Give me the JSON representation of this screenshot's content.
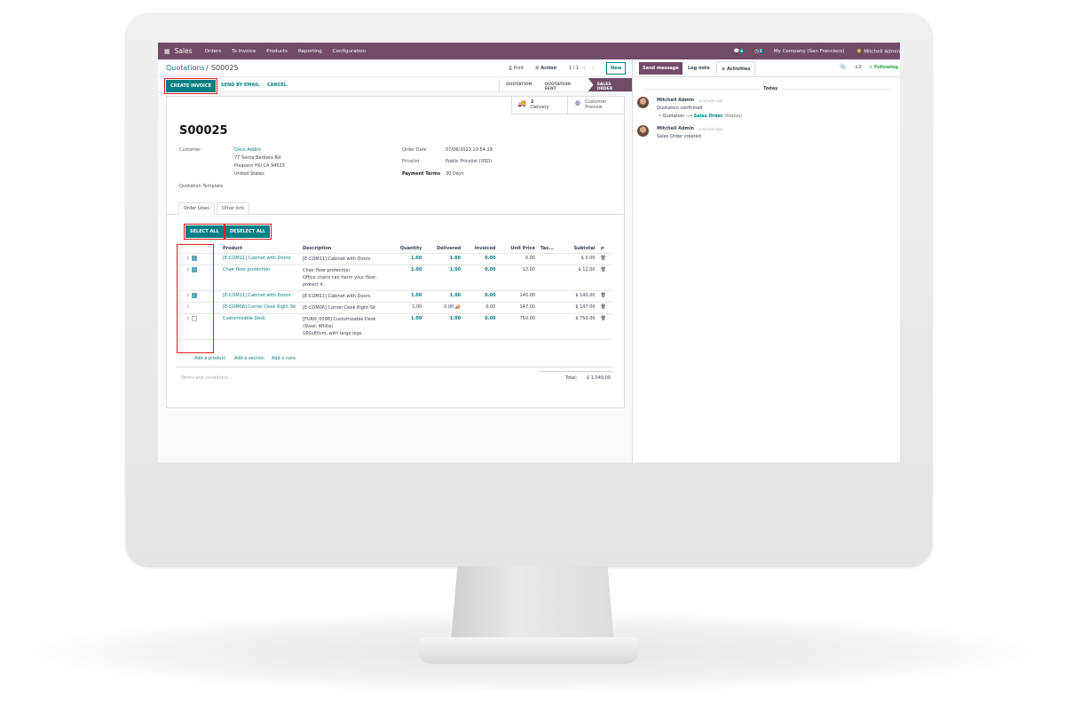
{
  "navbar": {
    "app": "Sales",
    "menu": [
      "Orders",
      "To Invoice",
      "Products",
      "Reporting",
      "Configuration"
    ],
    "messages_count": "6",
    "activities_count": "5",
    "company": "My Company (San Francisco)",
    "user": "Mitchell Admin"
  },
  "control": {
    "breadcrumb_parent": "Quotations",
    "breadcrumb_sep": "/",
    "breadcrumb_current": "S00025",
    "print": "Print",
    "action": "Action",
    "pager": "1 / 1",
    "new": "New"
  },
  "buttons": {
    "create_invoice": "CREATE INVOICE",
    "send_email": "SEND BY EMAIL",
    "cancel": "CANCEL"
  },
  "status": {
    "steps": [
      "QUOTATION",
      "QUOTATION SENT",
      "SALES ORDER"
    ],
    "active": "SALES ORDER"
  },
  "smart": {
    "delivery_count": "2",
    "delivery_label": "Delivery",
    "preview_line1": "Customer",
    "preview_line2": "Preview"
  },
  "form": {
    "name": "S00025",
    "customer_label": "Customer",
    "customer": "Deco Addict",
    "address": [
      "77 Santa Barbara Rd",
      "Pleasant Hill CA 94523",
      "United States"
    ],
    "template_label": "Quotation Template",
    "order_date_label": "Order Date",
    "order_date": "07/06/2023 10:54:19",
    "pricelist_label": "Pricelist",
    "pricelist": "Public Pricelist (USD)",
    "terms_label": "Payment Terms",
    "terms": "30 Days"
  },
  "tabs": [
    "Order Lines",
    "Other Info"
  ],
  "select_all": "SELECT ALL",
  "deselect_all": "DESELECT ALL",
  "table": {
    "headers": [
      "Product",
      "Description",
      "Quantity",
      "Delivered",
      "Invoiced",
      "Unit Price",
      "Tax...",
      "Subtotal"
    ],
    "rows": [
      {
        "checked": true,
        "product": "[E-COM11] Cabinet with Doors",
        "desc": [
          "[E-COM11] Cabinet with Doors"
        ],
        "qty": "1.00",
        "delivered": "1.00",
        "invoiced": "0.00",
        "price": "0.00",
        "subtotal": "$ 0.00",
        "hl": true
      },
      {
        "checked": true,
        "product": "Chair floor protection",
        "desc": [
          "Chair floor protection",
          "Office chairs can harm your floor:",
          "protect it."
        ],
        "qty": "1.00",
        "delivered": "1.00",
        "invoiced": "0.00",
        "price": "12.00",
        "subtotal": "$ 12.00",
        "hl": true
      },
      {
        "checked": true,
        "product": "[E-COM11] Cabinet with Doors",
        "desc": [
          "[E-COM11] Cabinet with Doors"
        ],
        "qty": "1.00",
        "delivered": "1.00",
        "invoiced": "0.00",
        "price": "140.00",
        "subtotal": "$ 140.00",
        "hl": true
      },
      {
        "checked": null,
        "product": "[E-COM06] Corner Desk Right Sit",
        "desc": [
          "[E-COM06] Corner Desk Right Sit"
        ],
        "qty": "1.00",
        "delivered": "0.00",
        "invoiced": "0.00",
        "price": "147.00",
        "subtotal": "$ 147.00",
        "hl": false,
        "truck": true
      },
      {
        "checked": false,
        "product": "Customizable Desk",
        "desc": [
          "[FURN_0096] Customizable Desk",
          "(Steel, White)",
          "160x80cm, with large legs."
        ],
        "qty": "1.00",
        "delivered": "1.00",
        "invoiced": "0.00",
        "price": "750.00",
        "subtotal": "$ 750.00",
        "hl": true
      }
    ],
    "add_product": "Add a product",
    "add_section": "Add a section",
    "add_note": "Add a note"
  },
  "terms_placeholder": "Terms and conditions...",
  "total_label": "Total:",
  "total": "$ 1,049.00",
  "chatter": {
    "send": "Send message",
    "log": "Log note",
    "activities": "Activities",
    "followers": "2",
    "following": "Following",
    "today": "Today",
    "messages": [
      {
        "author": "Mitchell Admin",
        "time": "- a minute ago",
        "body": "Quotation confirmed",
        "from": "Quotation",
        "to": "Sales Order",
        "field": "(Status)"
      },
      {
        "author": "Mitchell Admin",
        "time": "- a minute ago",
        "body": "Sales Order created"
      }
    ]
  },
  "colors": {
    "brand": "#714b67",
    "accent": "#017e84",
    "highlight": "#e02020"
  }
}
